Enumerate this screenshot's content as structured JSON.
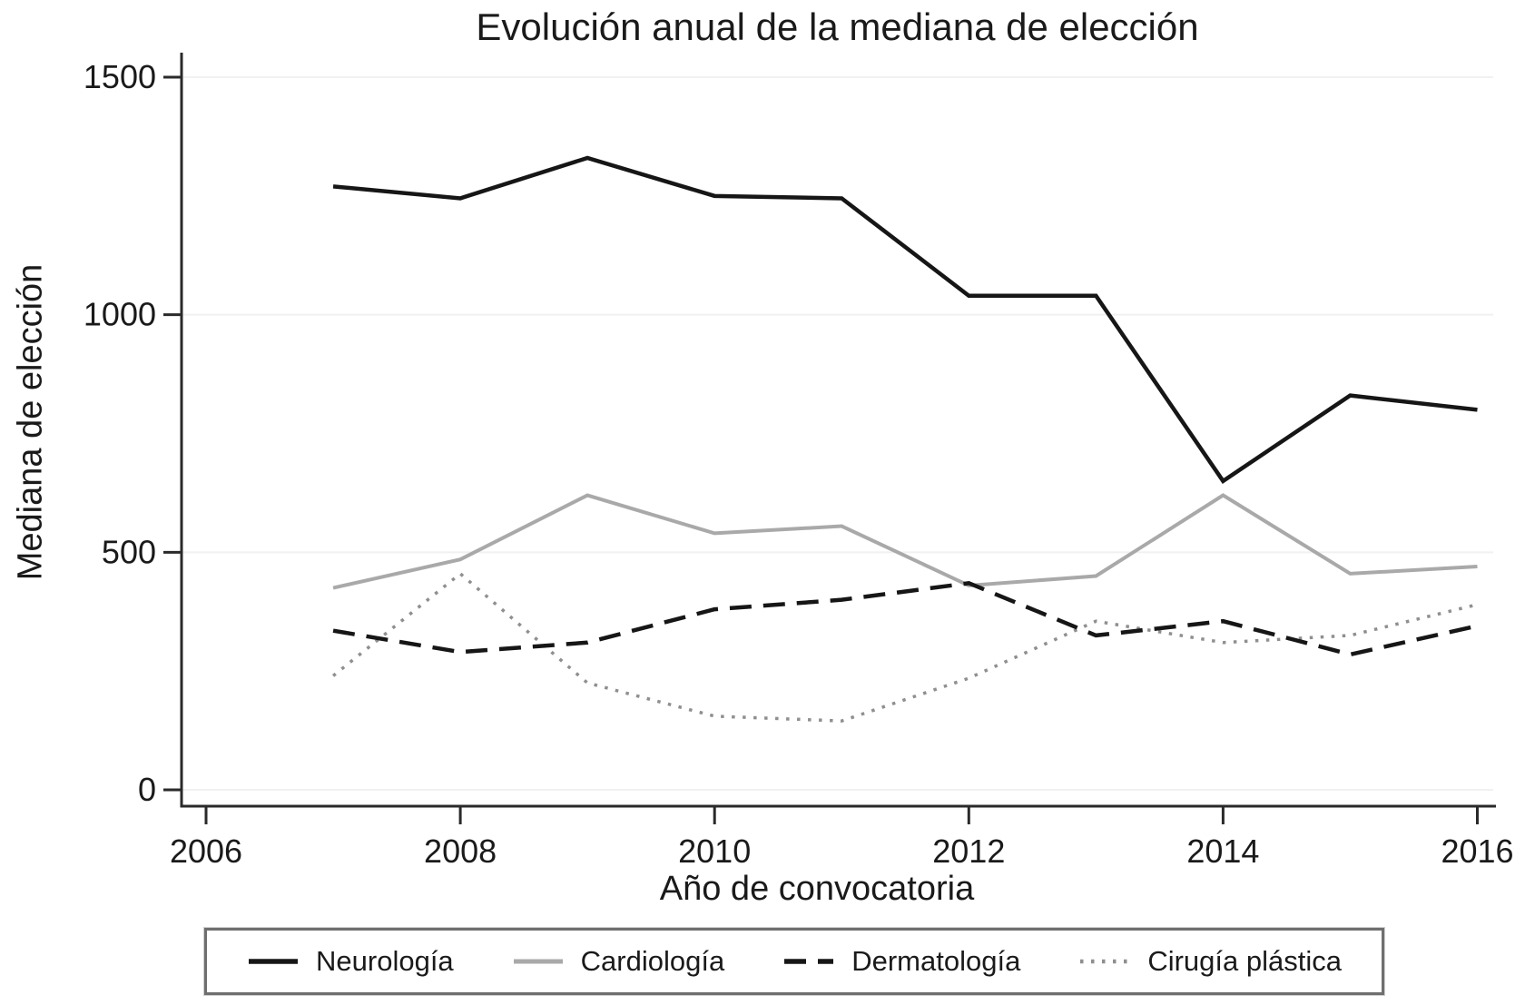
{
  "chart_data": {
    "type": "line",
    "title": "Evolución anual de la mediana de elección",
    "xlabel": "Año de convocatoria",
    "ylabel": "Mediana de elección",
    "x": [
      2007,
      2008,
      2009,
      2010,
      2011,
      2012,
      2013,
      2014,
      2015,
      2016
    ],
    "series": [
      {
        "name": "Neurología",
        "color": "#161616",
        "style": "solid",
        "width": 4.5,
        "values": [
          1270,
          1245,
          1330,
          1250,
          1245,
          1040,
          1040,
          650,
          830,
          800
        ]
      },
      {
        "name": "Cardiología",
        "color": "#a9a9a9",
        "style": "solid",
        "width": 4,
        "values": [
          425,
          485,
          620,
          540,
          555,
          430,
          450,
          620,
          455,
          470
        ]
      },
      {
        "name": "Dermatología",
        "color": "#161616",
        "style": "dashed",
        "width": 4.5,
        "values": [
          335,
          290,
          310,
          380,
          400,
          435,
          325,
          355,
          285,
          345
        ]
      },
      {
        "name": "Cirugía plástica",
        "color": "#8f8f8f",
        "style": "dotted",
        "width": 3.5,
        "values": [
          240,
          455,
          225,
          155,
          145,
          235,
          355,
          310,
          325,
          390
        ]
      }
    ],
    "xlim": [
      2006,
      2016
    ],
    "ylim": [
      0,
      1500
    ],
    "x_ticks": [
      2006,
      2008,
      2010,
      2012,
      2014,
      2016
    ],
    "y_ticks": [
      0,
      500,
      1000,
      1500
    ],
    "grid": true,
    "gridline_color": "#f1f1f1",
    "axis_color": "#2a2a2a",
    "legend_position": "bottom"
  }
}
